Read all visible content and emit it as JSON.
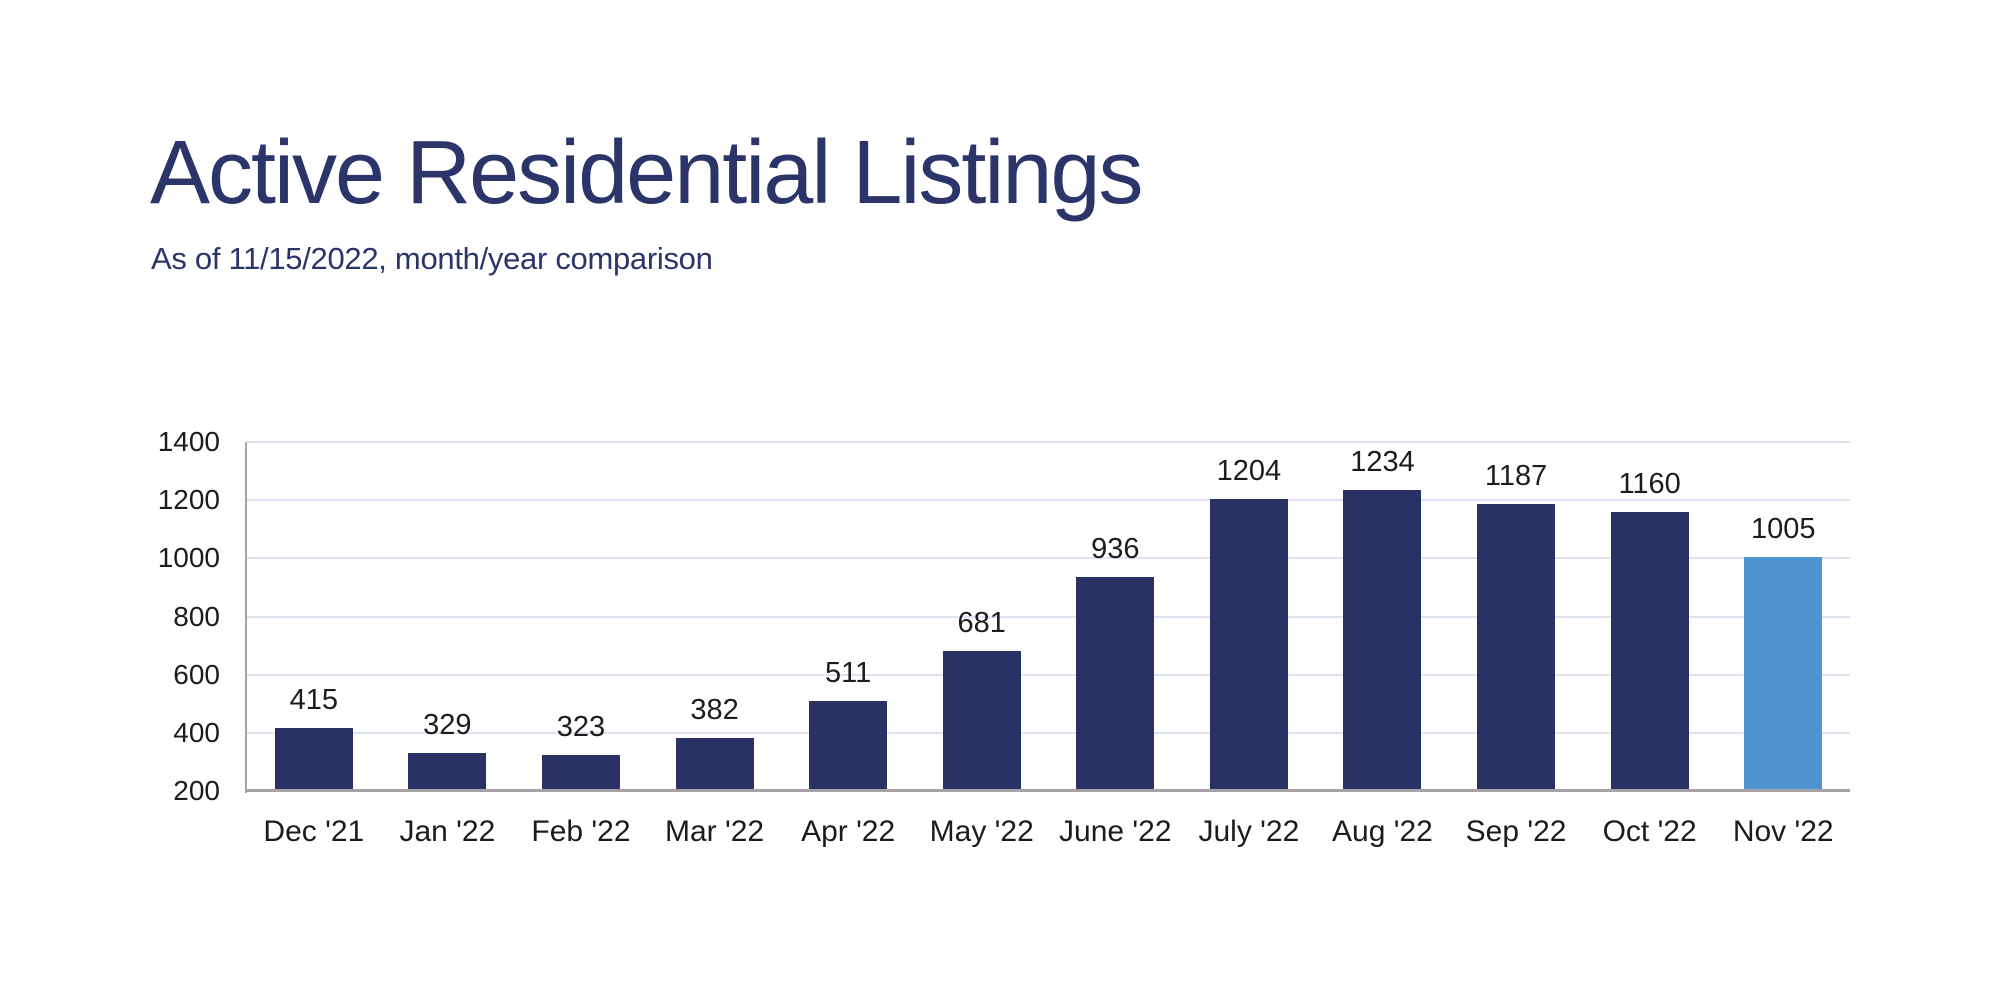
{
  "chart_data": {
    "type": "bar",
    "title": "Active Residential Listings",
    "subtitle": "As of 11/15/2022, month/year comparison",
    "categories": [
      "Dec '21",
      "Jan '22",
      "Feb '22",
      "Mar '22",
      "Apr '22",
      "May '22",
      "June '22",
      "July '22",
      "Aug '22",
      "Sep '22",
      "Oct '22",
      "Nov '22"
    ],
    "values": [
      415,
      329,
      323,
      382,
      511,
      681,
      936,
      1204,
      1234,
      1187,
      1160,
      1005
    ],
    "highlight_index": 11,
    "ylim": [
      200,
      1400
    ],
    "yticks": [
      1400,
      1200,
      1000,
      800,
      600,
      400,
      200
    ],
    "grid": true,
    "legend": false,
    "xlabel": "",
    "ylabel": "",
    "data_labels": true,
    "colors": {
      "bar": "#2a3164",
      "highlight_bar": "#4e95d0",
      "title_text": "#2c3569",
      "subtitle_text": "#2c3569",
      "axis_label_text": "#1c1c1c",
      "gridline": "#dde4f1",
      "axis_line": "#a6a3a6",
      "background": "#ffffff"
    }
  }
}
